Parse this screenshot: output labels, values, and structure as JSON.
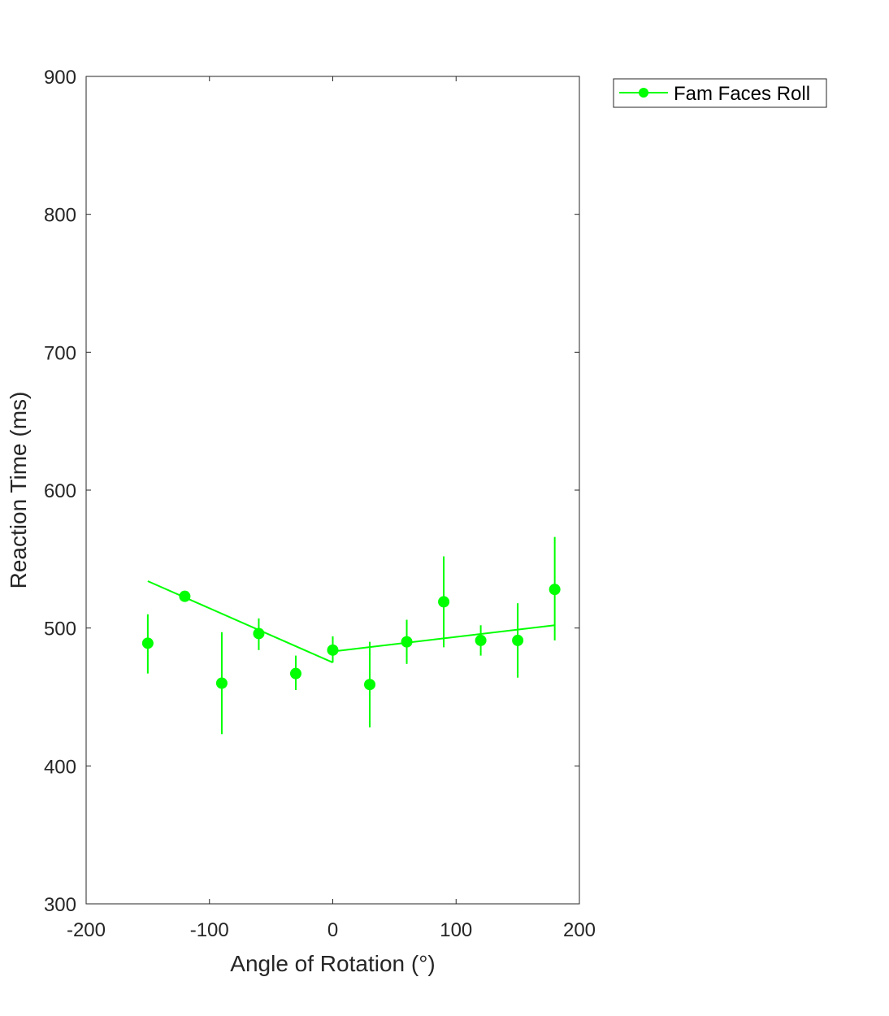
{
  "chart_data": {
    "type": "scatter",
    "title": "",
    "xlabel": "Angle of Rotation (°)",
    "ylabel": "Reaction Time (ms)",
    "xlim": [
      -200,
      200
    ],
    "ylim": [
      300,
      900
    ],
    "xticks": [
      -200,
      -100,
      0,
      100,
      200
    ],
    "yticks": [
      300,
      400,
      500,
      600,
      700,
      800,
      900
    ],
    "xtick_labels": [
      "-200",
      "-100",
      "0",
      "100",
      "200"
    ],
    "ytick_labels": [
      "300",
      "400",
      "500",
      "600",
      "700",
      "800",
      "900"
    ],
    "grid": false,
    "legend_position": "outside-top-right",
    "series": [
      {
        "name": "Fam Faces Roll",
        "color": "#00ff00",
        "x": [
          -150,
          -120,
          -90,
          -60,
          -30,
          0,
          30,
          60,
          90,
          120,
          150,
          180
        ],
        "y": [
          489,
          523,
          460,
          496,
          467,
          484,
          459,
          490,
          519,
          491,
          491,
          528
        ],
        "err_low": [
          467,
          523,
          423,
          484,
          455,
          475,
          428,
          474,
          486,
          480,
          464,
          491
        ],
        "err_high": [
          510,
          523,
          497,
          507,
          480,
          494,
          490,
          506,
          552,
          502,
          518,
          566
        ]
      }
    ],
    "fit_lines": [
      {
        "x": [
          -150,
          0
        ],
        "y": [
          534,
          475
        ]
      },
      {
        "x": [
          0,
          180
        ],
        "y": [
          483,
          502
        ]
      }
    ]
  }
}
